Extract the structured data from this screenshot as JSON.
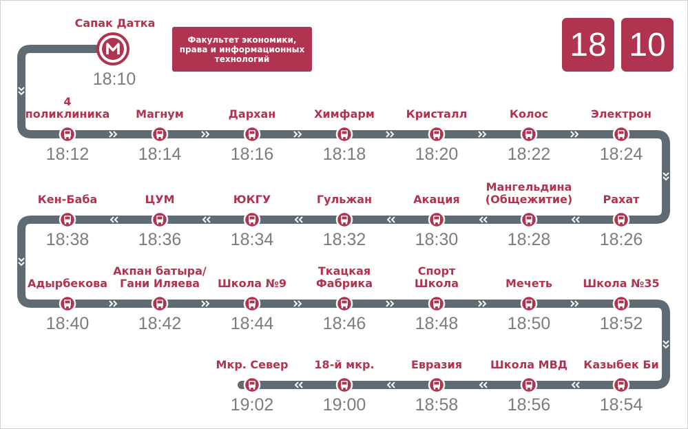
{
  "origin": {
    "name": "Сапак Датка",
    "time": "18:10"
  },
  "faculty_label": "Факультет экономики, права и информационных технологий",
  "routes": [
    "18",
    "10"
  ],
  "rows": [
    [
      {
        "name": "4\nполиклиника",
        "time": "18:12"
      },
      {
        "name": "Магнум",
        "time": "18:14"
      },
      {
        "name": "Дархан",
        "time": "18:16"
      },
      {
        "name": "Химфарм",
        "time": "18:18"
      },
      {
        "name": "Кристалл",
        "time": "18:20"
      },
      {
        "name": "Колос",
        "time": "18:22"
      },
      {
        "name": "Электрон",
        "time": "18:24"
      }
    ],
    [
      {
        "name": "Кен-Баба",
        "time": "18:38"
      },
      {
        "name": "ЦУМ",
        "time": "18:36"
      },
      {
        "name": "ЮКГУ",
        "time": "18:34"
      },
      {
        "name": "Гульжан",
        "time": "18:32"
      },
      {
        "name": "Акация",
        "time": "18:30"
      },
      {
        "name": "Мангельдина\n(Общежитие)",
        "time": "18:28"
      },
      {
        "name": "Рахат",
        "time": "18:26"
      }
    ],
    [
      {
        "name": "Адырбекова",
        "time": "18:40"
      },
      {
        "name": "Акпан батыра/\nГани Иляева",
        "time": "18:42"
      },
      {
        "name": "Школа №9",
        "time": "18:44"
      },
      {
        "name": "Ткацкая\nФабрика",
        "time": "18:46"
      },
      {
        "name": "Спорт\nШкола",
        "time": "18:48"
      },
      {
        "name": "Мечеть",
        "time": "18:50"
      },
      {
        "name": "Школа №35",
        "time": "18:52"
      }
    ],
    [
      {
        "name": "",
        "time": ""
      },
      {
        "name": "",
        "time": ""
      },
      {
        "name": "Мкр. Север",
        "time": "19:02"
      },
      {
        "name": "18-й мкр.",
        "time": "19:00"
      },
      {
        "name": "Евразия",
        "time": "18:58"
      },
      {
        "name": "Школа МВД",
        "time": "18:56"
      },
      {
        "name": "Казыбек Би",
        "time": "18:54"
      }
    ]
  ],
  "colors": {
    "accent": "#b0334f",
    "track": "#5f6b72",
    "time_text": "#7c7c7c"
  },
  "icons": {
    "stop": "bus-icon",
    "origin": "metro-logo-icon",
    "direction": "chevron-icon"
  }
}
